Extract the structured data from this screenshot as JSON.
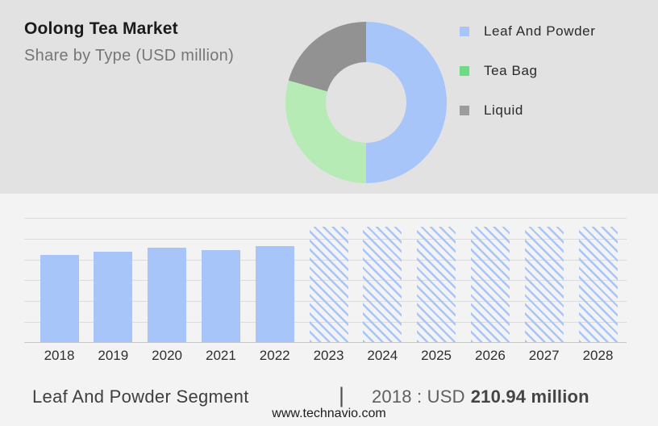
{
  "header": {
    "title": "Oolong Tea Market",
    "subtitle": "Share by Type (USD million)"
  },
  "legend": [
    {
      "label": "Leaf And Powder",
      "color": "#a7c5f8"
    },
    {
      "label": "Tea Bag",
      "color": "#6edc86"
    },
    {
      "label": "Liquid",
      "color": "#9c9c9c"
    }
  ],
  "chart_data": [
    {
      "type": "pie",
      "style": "donut",
      "title": "Oolong Tea Market Share by Type (USD million)",
      "legend_position": "right",
      "segments": [
        {
          "label": "Leaf And Powder",
          "share_pct": 50.0,
          "color": "#a7c5f8"
        },
        {
          "label": "Tea Bag",
          "share_pct": 29.4,
          "color": "#b6ebb5"
        },
        {
          "label": "Liquid",
          "share_pct": 20.6,
          "color": "#929292"
        }
      ]
    },
    {
      "type": "bar",
      "title": "Leaf And Powder Segment (USD million)",
      "xlabel": "",
      "ylabel": "",
      "ylim": [
        0,
        300
      ],
      "gridline_step": 50,
      "grid": true,
      "y_tick_labels_shown": false,
      "categories": [
        "2018",
        "2019",
        "2020",
        "2021",
        "2022",
        "2023",
        "2024",
        "2025",
        "2026",
        "2027",
        "2028"
      ],
      "bar_color": "#a7c5f8",
      "forecast_style": "diagonal-hatch",
      "bars": [
        {
          "year": "2018",
          "value": 210.94,
          "segment": "actual"
        },
        {
          "year": "2019",
          "value": 219,
          "segment": "actual"
        },
        {
          "year": "2020",
          "value": 229,
          "segment": "actual"
        },
        {
          "year": "2021",
          "value": 223,
          "segment": "actual"
        },
        {
          "year": "2022",
          "value": 233,
          "segment": "actual"
        },
        {
          "year": "2023",
          "value": 280,
          "segment": "forecast"
        },
        {
          "year": "2024",
          "value": 280,
          "segment": "forecast"
        },
        {
          "year": "2025",
          "value": 280,
          "segment": "forecast"
        },
        {
          "year": "2026",
          "value": 280,
          "segment": "forecast"
        },
        {
          "year": "2027",
          "value": 280,
          "segment": "forecast"
        },
        {
          "year": "2028",
          "value": 280,
          "segment": "forecast"
        }
      ]
    }
  ],
  "footer": {
    "segment_label": "Leaf And Powder Segment",
    "divider": "|",
    "stat_prefix": "2018 : USD",
    "stat_value": "210.94 million",
    "website": "www.technavio.com"
  }
}
